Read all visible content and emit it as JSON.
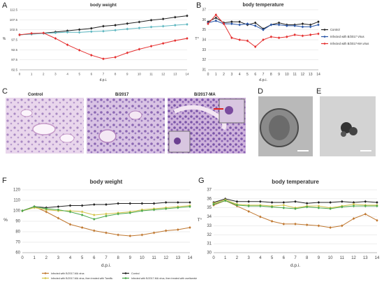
{
  "panel_labels": {
    "A": "A",
    "B": "B",
    "C": "C",
    "D": "D",
    "E": "E",
    "F": "F",
    "G": "G"
  },
  "micro_labels": {
    "control": "Control",
    "b2017": "B/2017",
    "b2017ma": "B/2017-MA"
  },
  "chart_data": [
    {
      "id": "A",
      "type": "line",
      "title": "body weight",
      "xlabel": "d.p.i.",
      "ylabel": "%",
      "x": [
        0,
        1,
        2,
        3,
        4,
        5,
        6,
        7,
        8,
        9,
        10,
        11,
        12,
        13,
        14
      ],
      "ylim": [
        82.5,
        112.5
      ],
      "yticks": [
        82.5,
        87.5,
        92.5,
        97.5,
        102.5,
        107.5,
        112.5
      ],
      "series": [
        {
          "color": "#222222",
          "values": [
            100,
            100.4,
            100.8,
            101.4,
            102,
            102.6,
            103.2,
            104.3,
            104.8,
            105.6,
            106.4,
            107.3,
            107.9,
            108.8,
            109.5
          ]
        },
        {
          "color": "#5fb7c0",
          "values": [
            100,
            100.3,
            100.7,
            101,
            101.3,
            101.2,
            101.6,
            101.8,
            102.3,
            102.9,
            103.4,
            103.9,
            104.3,
            104.8,
            105.2
          ]
        },
        {
          "color": "#e53030",
          "values": [
            100,
            100.7,
            100.9,
            98.2,
            95,
            92.3,
            89.8,
            88,
            88.8,
            91,
            92.8,
            94.3,
            95.7,
            97.1,
            98.2
          ]
        }
      ]
    },
    {
      "id": "B",
      "type": "line",
      "title": "body temperature",
      "xlabel": "d.p.i.",
      "ylabel": "T°",
      "x": [
        0,
        1,
        2,
        3,
        4,
        5,
        6,
        7,
        8,
        9,
        10,
        11,
        12,
        13,
        14
      ],
      "ylim": [
        31,
        37
      ],
      "yticks": [
        31,
        32,
        33,
        34,
        35,
        36,
        37
      ],
      "legend": "right",
      "series": [
        {
          "name": "Control",
          "color": "#222222",
          "values": [
            35.8,
            36.2,
            35.7,
            35.8,
            35.8,
            35.5,
            35.7,
            35.1,
            35.5,
            35.7,
            35.5,
            35.5,
            35.6,
            35.5,
            35.8
          ]
        },
        {
          "name": "Infected with B/2017 Virus",
          "color": "#2855a8",
          "values": [
            35.7,
            35.9,
            35.6,
            35.6,
            35.5,
            35.6,
            35.4,
            35.0,
            35.5,
            35.5,
            35.4,
            35.4,
            35.3,
            35.3,
            35.5
          ]
        },
        {
          "name": "Infected with B/2017-MA virus",
          "color": "#e53030",
          "values": [
            35.6,
            36.5,
            35.6,
            34.2,
            34.0,
            33.9,
            33.3,
            34.0,
            34.3,
            34.2,
            34.3,
            34.5,
            34.4,
            34.5,
            34.6
          ]
        }
      ]
    },
    {
      "id": "F",
      "type": "line",
      "title": "body weight",
      "xlabel": "d.p.i.",
      "ylabel": "%",
      "x": [
        0,
        1,
        2,
        3,
        4,
        5,
        6,
        7,
        8,
        9,
        10,
        11,
        12,
        13,
        14
      ],
      "ylim": [
        60,
        120
      ],
      "yticks": [
        60,
        70,
        80,
        90,
        100,
        110,
        120
      ],
      "legend": "bottom",
      "series": [
        {
          "name": "Infected with B/2017-MA virus",
          "color": "#c07830",
          "values": [
            100,
            104,
            99,
            93,
            87,
            84,
            81,
            79,
            77,
            76,
            77,
            79,
            81,
            82,
            84
          ]
        },
        {
          "name": "Control",
          "color": "#222222",
          "values": [
            100,
            104,
            103,
            104,
            105,
            105,
            106,
            106,
            107,
            107,
            107,
            107,
            108,
            108,
            108
          ]
        },
        {
          "name": "Infected with B/2017-MA virus, then treated with Tamiflu",
          "color": "#d4c44a",
          "values": [
            100,
            103,
            101,
            100,
            100,
            99,
            96,
            97,
            98,
            99,
            101,
            102,
            103,
            104,
            105
          ]
        },
        {
          "name": "Infected with B/2017-MA virus, then treated with oseltamivir ethoxysuccinate",
          "color": "#4aa84a",
          "values": [
            100,
            104,
            102,
            101,
            99,
            96,
            92,
            95,
            97,
            98,
            100,
            101,
            102,
            103,
            104
          ]
        }
      ]
    },
    {
      "id": "G",
      "type": "line",
      "title": "body temperature",
      "xlabel": "d.p.i.",
      "ylabel": "T°",
      "x": [
        0,
        1,
        2,
        3,
        4,
        5,
        6,
        7,
        8,
        9,
        10,
        11,
        12,
        13,
        14
      ],
      "ylim": [
        30,
        37
      ],
      "yticks": [
        30,
        31,
        32,
        33,
        34,
        35,
        36,
        37
      ],
      "series": [
        {
          "color": "#c07830",
          "values": [
            35.3,
            35.8,
            35.2,
            34.6,
            34.0,
            33.5,
            33.2,
            33.2,
            33.1,
            33.0,
            32.8,
            33.0,
            33.8,
            34.3,
            33.6
          ]
        },
        {
          "color": "#222222",
          "values": [
            35.6,
            36.0,
            35.7,
            35.7,
            35.7,
            35.6,
            35.6,
            35.7,
            35.5,
            35.6,
            35.6,
            35.7,
            35.6,
            35.7,
            35.6
          ]
        },
        {
          "color": "#d4c44a",
          "values": [
            35.5,
            35.9,
            35.4,
            35.3,
            35.3,
            35.2,
            35.3,
            35.0,
            35.2,
            35.2,
            35.0,
            35.2,
            35.4,
            35.3,
            35.3
          ]
        },
        {
          "color": "#4aa84a",
          "values": [
            35.4,
            35.8,
            35.3,
            35.2,
            35.2,
            35.1,
            35.0,
            34.9,
            35.1,
            35.0,
            34.9,
            35.1,
            35.2,
            35.2,
            35.2
          ]
        }
      ]
    }
  ]
}
